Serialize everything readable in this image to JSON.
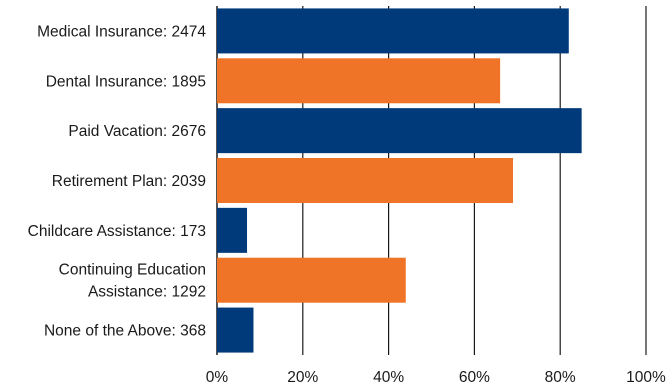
{
  "chart_data": {
    "type": "bar",
    "orientation": "horizontal",
    "categories": [
      [
        "Medical Insurance: 2474"
      ],
      [
        "Dental Insurance: 1895"
      ],
      [
        "Paid Vacation: 2676"
      ],
      [
        "Retirement Plan: 2039"
      ],
      [
        "Childcare Assistance: 173"
      ],
      [
        "Continuing Education",
        "Assistance: 1292"
      ],
      [
        "None of the Above: 368"
      ]
    ],
    "values": [
      82,
      66,
      85,
      69,
      7,
      44,
      8.5
    ],
    "counts": [
      2474,
      1895,
      2676,
      2039,
      173,
      1292,
      368
    ],
    "xlim": [
      0,
      100
    ],
    "xticks": [
      "0%",
      "20%",
      "40%",
      "60%",
      "80%",
      "100%"
    ],
    "grid": "vertical",
    "bar_colors": [
      "#003a7a",
      "#f07427",
      "#003a7a",
      "#f07427",
      "#003a7a",
      "#f07427",
      "#003a7a"
    ],
    "gridline_color": "#1a1a1a",
    "title": "",
    "xlabel": "",
    "ylabel": ""
  }
}
